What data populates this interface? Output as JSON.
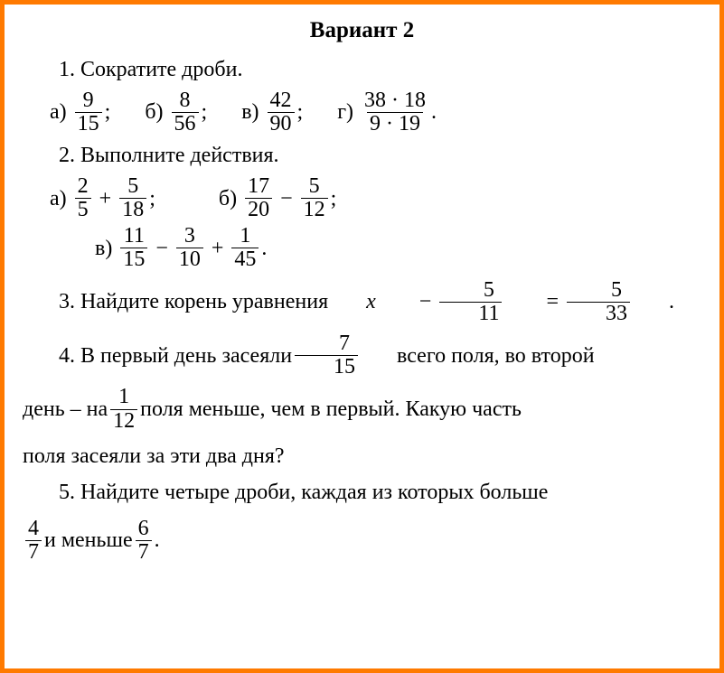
{
  "border_color": "#ff7a00",
  "background_color": "#ffffff",
  "text_color": "#000000",
  "font_family": "Times New Roman",
  "title_fontsize": 25,
  "body_fontsize": 24,
  "title": "Вариант 2",
  "q1": {
    "prompt": "1. Сократите дроби.",
    "a": {
      "label": "а)",
      "num": "9",
      "den": "15",
      "tail": ";"
    },
    "b": {
      "label": "б)",
      "num": "8",
      "den": "56",
      "tail": ";"
    },
    "c": {
      "label": "в)",
      "num": "42",
      "den": "90",
      "tail": ";"
    },
    "d": {
      "label": "г)",
      "num": "38 · 18",
      "den": "9 · 19",
      "tail": "."
    }
  },
  "q2": {
    "prompt": "2. Выполните действия.",
    "a": {
      "label": "а)",
      "f1n": "2",
      "f1d": "5",
      "op": "+",
      "f2n": "5",
      "f2d": "18",
      "tail": ";"
    },
    "b": {
      "label": "б)",
      "f1n": "17",
      "f1d": "20",
      "op": "−",
      "f2n": "5",
      "f2d": "12",
      "tail": ";"
    },
    "c": {
      "label": "в)",
      "f1n": "11",
      "f1d": "15",
      "op1": "−",
      "f2n": "3",
      "f2d": "10",
      "op2": "+",
      "f3n": "1",
      "f3d": "45",
      "tail": "."
    }
  },
  "q3": {
    "pre": "3. Найдите корень уравнения ",
    "var": "x",
    "op1": "−",
    "f1n": "5",
    "f1d": "11",
    "eq": "=",
    "f2n": "5",
    "f2d": "33",
    "tail": "."
  },
  "q4": {
    "part1": "4. В первый день засеяли ",
    "f1n": "7",
    "f1d": "15",
    "part2": " всего поля, во второй",
    "part3": "день – на ",
    "f2n": "1",
    "f2d": "12",
    "part4": " поля меньше, чем в первый. Какую часть",
    "part5": "поля засеяли за эти два дня?"
  },
  "q5": {
    "part1": "5. Найдите четыре дроби, каждая из которых больше",
    "f1n": "4",
    "f1d": "7",
    "mid": " и меньше ",
    "f2n": "6",
    "f2d": "7",
    "tail": "."
  }
}
